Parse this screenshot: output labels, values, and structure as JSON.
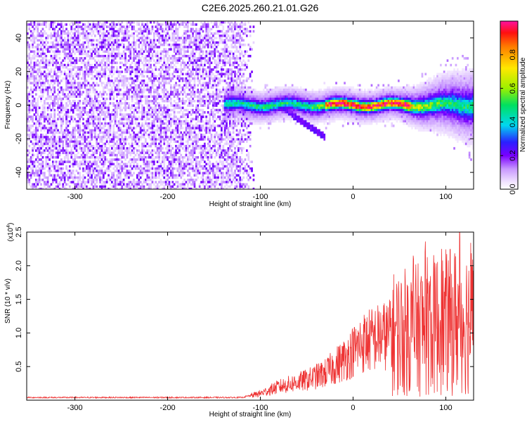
{
  "title": "C2E6.2025.260.21.01.G26",
  "chart_data": [
    {
      "type": "heatmap",
      "xlabel": "Height of straight line (km)",
      "ylabel": "Frequency (Hz)",
      "xlim": [
        -352,
        130
      ],
      "ylim": [
        -50,
        50
      ],
      "xticks": [
        -300,
        -200,
        -100,
        0,
        100
      ],
      "xtick_labels": [
        "-300",
        "-200",
        "-100",
        "0",
        "100"
      ],
      "yticks": [
        -40,
        -20,
        0,
        20,
        40
      ],
      "ytick_labels": [
        "-40",
        "-20",
        "0",
        "20",
        "40"
      ],
      "colorbar": {
        "label": "Normalized spectral amplitude",
        "range": [
          0,
          1
        ],
        "ticks": [
          0,
          0.2,
          0.4,
          0.6,
          0.8
        ],
        "tick_labels": [
          "0.0",
          "0.2",
          "0.4",
          "0.6",
          "0.8"
        ]
      },
      "features": {
        "noise_region_x": [
          -352,
          -105
        ],
        "signal_band_x": [
          -140,
          130
        ],
        "signal_center_freq": 0,
        "branch_x": [
          -75,
          -30
        ],
        "branch_freq": [
          -2,
          -19
        ]
      }
    },
    {
      "type": "line",
      "xlabel": "Height of straight line (km)",
      "ylabel": "SNR (10 * v/v)",
      "multiplier": "(x10",
      "multiplier_exp": "4",
      "multiplier_close": ")",
      "xlim": [
        -352,
        130
      ],
      "ylim": [
        0,
        2.5
      ],
      "xticks": [
        -300,
        -200,
        -100,
        0,
        100
      ],
      "xtick_labels": [
        "-300",
        "-200",
        "-100",
        "0",
        "100"
      ],
      "yticks": [
        0.5,
        1.0,
        1.5,
        2.0,
        2.5
      ],
      "ytick_labels": [
        "0.5",
        "1.0",
        "1.5",
        "2.0",
        "2.5"
      ],
      "envelope": {
        "x": [
          -352,
          -120,
          -100,
          -80,
          -50,
          -30,
          -10,
          10,
          30,
          50,
          70,
          80,
          100,
          115,
          130
        ],
        "y": [
          0.04,
          0.04,
          0.1,
          0.2,
          0.3,
          0.4,
          0.6,
          0.85,
          0.95,
          1.0,
          1.05,
          1.1,
          1.15,
          1.2,
          1.2
        ]
      },
      "line_color": "#ee3333"
    }
  ]
}
